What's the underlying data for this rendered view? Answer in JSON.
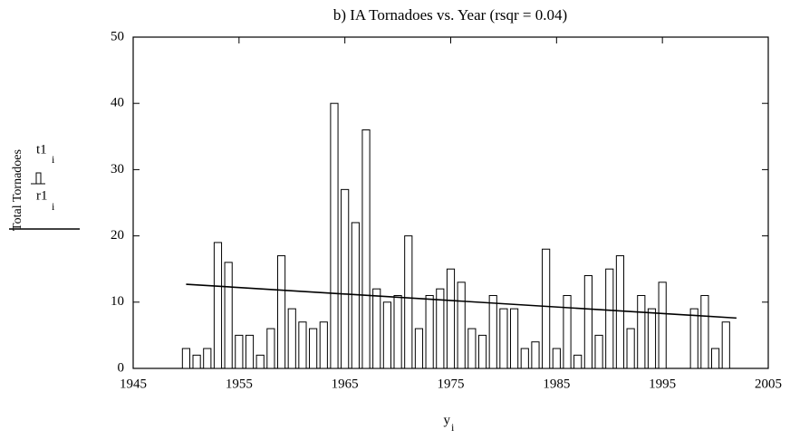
{
  "chart_data": {
    "type": "bar",
    "title": "b) IA Tornadoes vs.  Year (rsqr = 0.04)",
    "xlabel": "y",
    "xlabel_sub": "i",
    "ylabel": "Total Tornadoes",
    "xlim": [
      1945,
      2005
    ],
    "xticks": [
      1945,
      1955,
      1965,
      1975,
      1985,
      1995,
      2005
    ],
    "ylim": [
      0,
      50
    ],
    "yticks": [
      0,
      10,
      20,
      30,
      40,
      50
    ],
    "series": [
      {
        "name": "t1",
        "name_sub": "i",
        "type": "bar",
        "color": "#000000",
        "x": [
          1950,
          1951,
          1952,
          1953,
          1954,
          1955,
          1956,
          1957,
          1958,
          1959,
          1960,
          1961,
          1962,
          1963,
          1964,
          1965,
          1966,
          1967,
          1968,
          1969,
          1970,
          1971,
          1972,
          1973,
          1974,
          1975,
          1976,
          1977,
          1978,
          1979,
          1980,
          1981,
          1982,
          1983,
          1984,
          1985,
          1986,
          1987,
          1988,
          1989,
          1990,
          1991,
          1992,
          1993,
          1994,
          1995,
          1998,
          1999,
          2000,
          2001
        ],
        "values": [
          3,
          2,
          3,
          19,
          16,
          5,
          5,
          2,
          6,
          17,
          9,
          7,
          6,
          7,
          40,
          27,
          22,
          36,
          12,
          10,
          11,
          20,
          6,
          11,
          12,
          15,
          13,
          6,
          5,
          11,
          9,
          9,
          3,
          4,
          18,
          3,
          11,
          2,
          14,
          5,
          15,
          17,
          6,
          11,
          9,
          13,
          9,
          11,
          3,
          7
        ]
      },
      {
        "name": "r1",
        "name_sub": "i",
        "type": "line",
        "color": "#000000",
        "x": [
          1950,
          2002
        ],
        "values": [
          12.7,
          7.6
        ]
      }
    ]
  }
}
